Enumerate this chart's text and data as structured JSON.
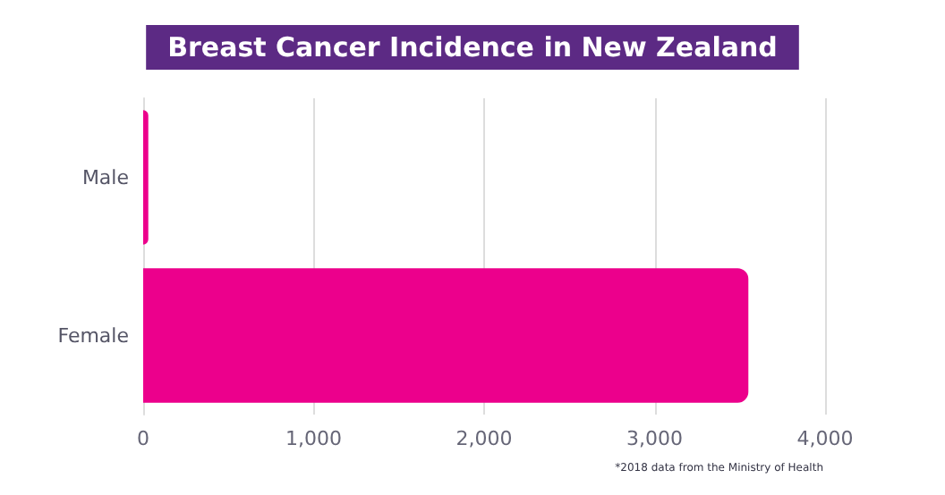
{
  "chart_data": {
    "type": "bar",
    "orientation": "horizontal",
    "title": "Breast Cancer Incidence in New Zealand",
    "categories": [
      "Male",
      "Female"
    ],
    "values": [
      30,
      3550
    ],
    "color": "#ec008c",
    "xlim": [
      0,
      4000
    ],
    "xticks": [
      {
        "value": 0,
        "label": "0"
      },
      {
        "value": 1000,
        "label": "1,000"
      },
      {
        "value": 2000,
        "label": "2,000"
      },
      {
        "value": 3000,
        "label": "3,000"
      },
      {
        "value": 4000,
        "label": "4,000"
      }
    ],
    "grid": "x",
    "annotations": [
      "*2018 data from the Ministry of Health"
    ]
  }
}
